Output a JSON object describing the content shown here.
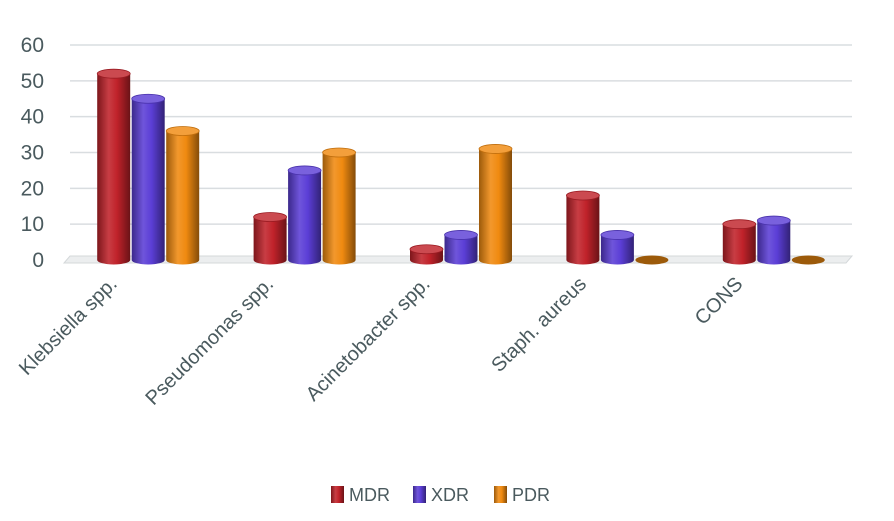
{
  "chart_data": {
    "type": "bar",
    "categories": [
      "Klebsiella spp.",
      "Pseudomonas spp.",
      "Acinetobacter spp.",
      "Staph. aureus",
      "CONS"
    ],
    "series": [
      {
        "name": "MDR",
        "values": [
          52,
          12,
          3,
          18,
          10
        ],
        "color": "#c0222a"
      },
      {
        "name": "XDR",
        "values": [
          45,
          25,
          7,
          7,
          11
        ],
        "color": "#5b3ed6"
      },
      {
        "name": "PDR",
        "values": [
          36,
          30,
          31,
          0,
          0
        ],
        "color": "#f08a10"
      }
    ],
    "yticks": [
      "0",
      "10",
      "20",
      "30",
      "40",
      "50",
      "60"
    ],
    "ylim": [
      0,
      60
    ],
    "grid": true,
    "legend": "bottom",
    "style": "3d-cylinder"
  }
}
